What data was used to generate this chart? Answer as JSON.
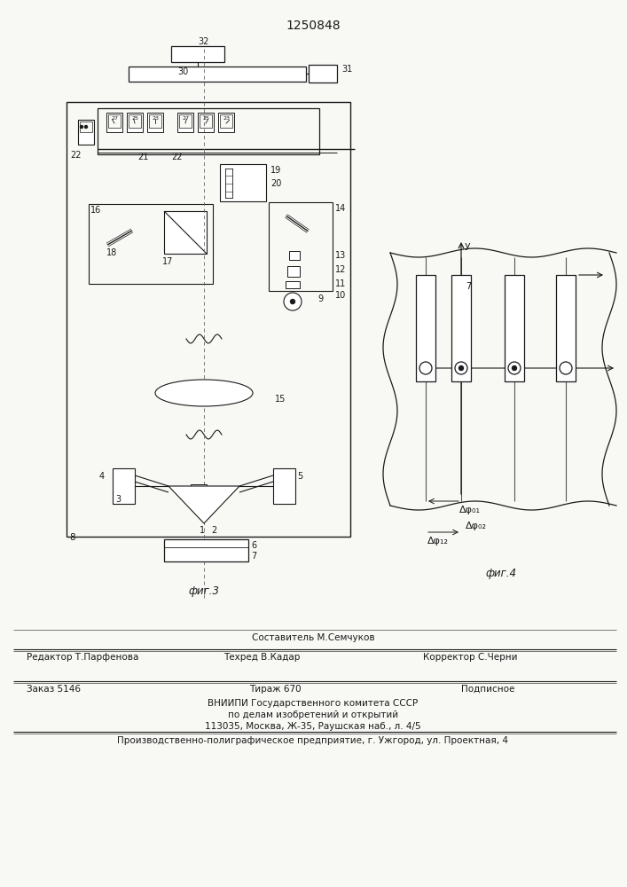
{
  "title": "1250848",
  "bg_color": "#f8f8f5",
  "fig3_label": "фиг.3",
  "fig4_label": "фиг.4",
  "line_color": "#1a1a1a"
}
